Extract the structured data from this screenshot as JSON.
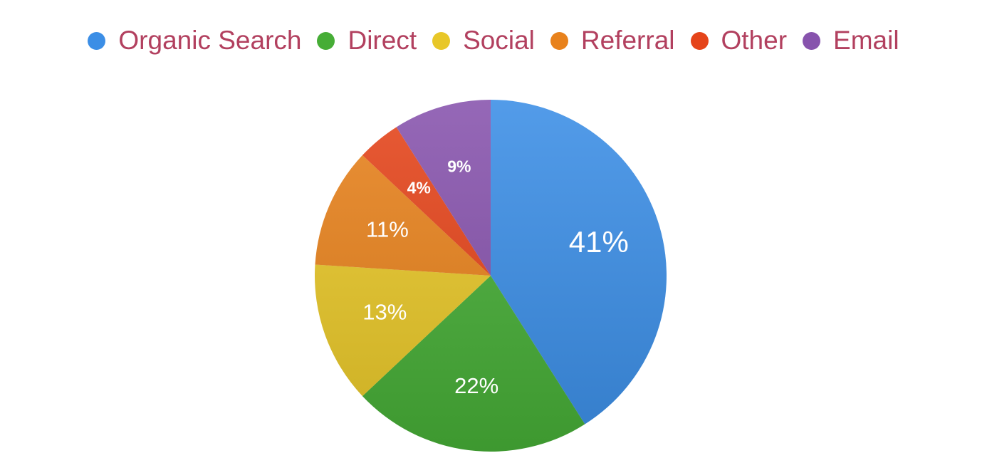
{
  "chart_data": {
    "type": "pie",
    "categories": [
      "Organic Search",
      "Direct",
      "Social",
      "Referral",
      "Other",
      "Email"
    ],
    "values": [
      41,
      22,
      13,
      11,
      4,
      9
    ],
    "value_labels": [
      "41%",
      "22%",
      "13%",
      "11%",
      "4%",
      "9%"
    ],
    "colors": [
      "#3b8ee6",
      "#46ad36",
      "#e8c728",
      "#e8821c",
      "#e5441a",
      "#8753ad"
    ],
    "legend": "top"
  }
}
